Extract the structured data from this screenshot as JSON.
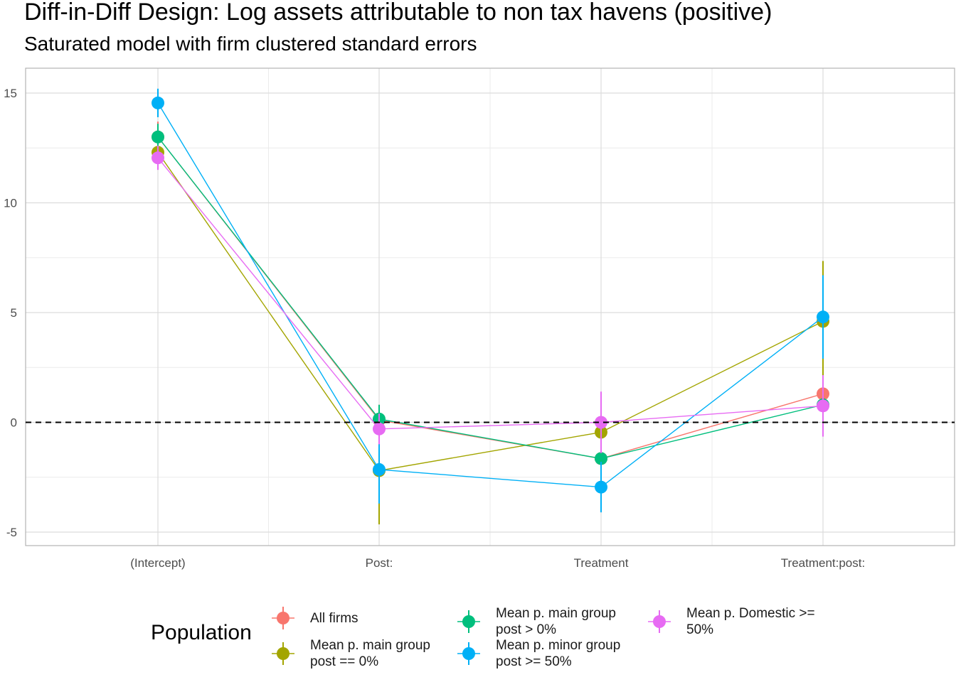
{
  "title": "Diff-in-Diff Design: Log assets attributable to non tax havens (positive)",
  "subtitle": "Saturated model with firm clustered standard errors",
  "legend": {
    "title": "Population"
  },
  "chart_data": {
    "type": "line",
    "categories": [
      "(Intercept)",
      "Post:",
      "Treatment",
      "Treatment:post:"
    ],
    "yticks": [
      -5,
      0,
      5,
      10,
      15
    ],
    "ylim": [
      -5.7,
      16.2
    ],
    "grid": true,
    "reference_line": 0,
    "legend_position": "bottom",
    "series": [
      {
        "name": "All firms",
        "color": "#F8766D",
        "values": [
          13.0,
          0.1,
          -1.65,
          1.3
        ],
        "lower": [
          12.3,
          -0.6,
          -2.4,
          0.3
        ],
        "upper": [
          13.7,
          0.8,
          -0.9,
          2.3
        ]
      },
      {
        "name": "Mean p. main group post == 0%",
        "color": "#A3A500",
        "values": [
          12.3,
          -2.2,
          -0.45,
          4.6
        ],
        "lower": [
          11.8,
          -4.65,
          -1.1,
          1.9
        ],
        "upper": [
          12.8,
          0.25,
          0.2,
          7.35
        ]
      },
      {
        "name": "Mean p. main group post > 0%",
        "color": "#00BF7D",
        "values": [
          13.0,
          0.15,
          -1.65,
          0.8
        ],
        "lower": [
          12.4,
          -0.5,
          -2.3,
          0.0
        ],
        "upper": [
          13.6,
          0.8,
          -1.0,
          1.6
        ]
      },
      {
        "name": "Mean p. minor group post >= 50%",
        "color": "#00B0F6",
        "values": [
          14.55,
          -2.15,
          -2.95,
          4.8
        ],
        "lower": [
          13.9,
          -3.7,
          -4.1,
          2.9
        ],
        "upper": [
          15.2,
          -0.6,
          -1.8,
          6.7
        ]
      },
      {
        "name": "Mean p. Domestic >= 50%",
        "color": "#E76BF3",
        "values": [
          12.05,
          -0.3,
          0.0,
          0.75
        ],
        "lower": [
          11.5,
          -1.0,
          -1.4,
          -0.65
        ],
        "upper": [
          12.6,
          0.4,
          1.4,
          2.15
        ]
      }
    ]
  }
}
